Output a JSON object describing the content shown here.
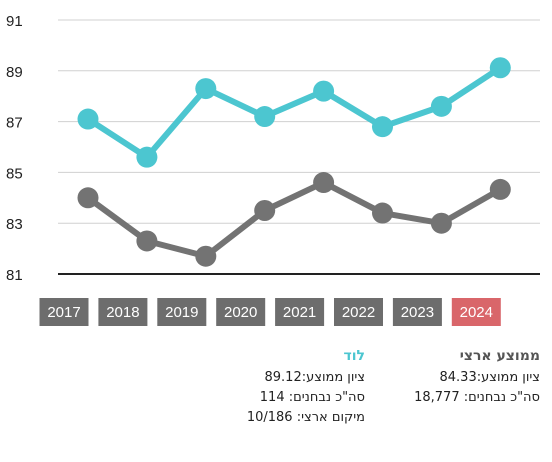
{
  "chart_data": {
    "type": "line",
    "x": [
      "2017",
      "2018",
      "2019",
      "2020",
      "2021",
      "2022",
      "2023",
      "2024"
    ],
    "highlight_x": "2024",
    "ylim": [
      81,
      91
    ],
    "yticks": [
      "91",
      "89",
      "87",
      "85",
      "83",
      "81"
    ],
    "grid": true,
    "series": [
      {
        "name": "לוד",
        "color": "#4cc6d0",
        "values": [
          87.1,
          85.6,
          88.3,
          87.2,
          88.2,
          86.8,
          87.6,
          89.12
        ]
      },
      {
        "name": "ממוצע ארצי",
        "color": "#737373",
        "values": [
          84.0,
          82.3,
          81.7,
          83.5,
          84.6,
          83.4,
          83.0,
          84.33
        ]
      }
    ],
    "colors": {
      "tick_box": "#6d6d6d",
      "tick_box_highlight": "#d9666a",
      "grid": "#d0d0d0",
      "baseline": "#222222"
    }
  },
  "legend": {
    "lod": {
      "title": "לוד",
      "avg": "ציון ממוצע:89.12",
      "count": "סה\"כ נבחנים: 114",
      "rank": "מיקום ארצי: 10/186"
    },
    "national": {
      "title": "ממוצע ארצי",
      "avg": "ציון ממוצע:84.33",
      "count": "סה\"כ נבחנים: 18,777"
    }
  }
}
